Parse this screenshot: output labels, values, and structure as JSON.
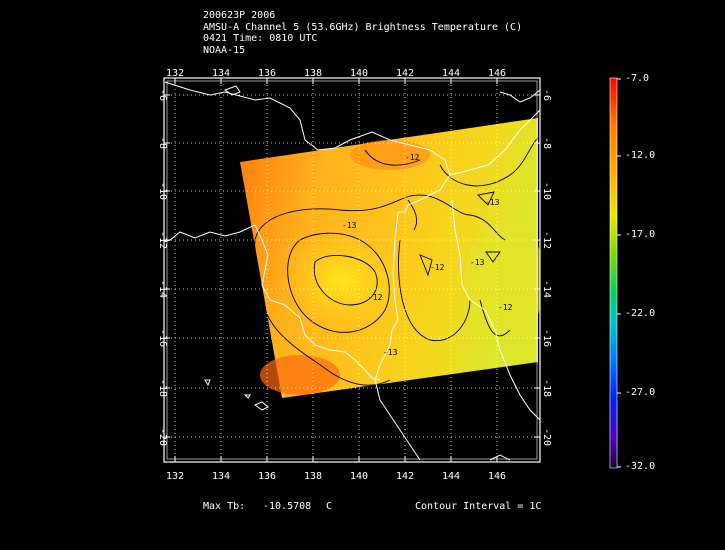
{
  "header": {
    "line1": "200623P 2006",
    "line2": "AMSU-A Channel 5 (53.6GHz) Brightness Temperature (C)",
    "line3": "0421 Time: 0810 UTC",
    "line4": "NOAA-15"
  },
  "map": {
    "lon_labels": [
      "132",
      "134",
      "136",
      "138",
      "140",
      "142",
      "144",
      "146"
    ],
    "lat_labels": [
      "-6",
      "-8",
      "-10",
      "-12",
      "-14",
      "-16",
      "-18",
      "-20"
    ],
    "contour_labels": [
      "-13",
      "-12",
      "-13",
      "-12",
      "-13",
      "-13",
      "-12",
      "-12"
    ]
  },
  "colorbar": {
    "labels": [
      "-7.0",
      "-12.0",
      "-17.0",
      "-22.0",
      "-27.0",
      "-32.0"
    ]
  },
  "footer": {
    "max_tb_label": "Max Tb:",
    "max_tb_value": "-10.5708",
    "max_tb_unit": "C",
    "contour_interval": "Contour Interval = 1C"
  }
}
